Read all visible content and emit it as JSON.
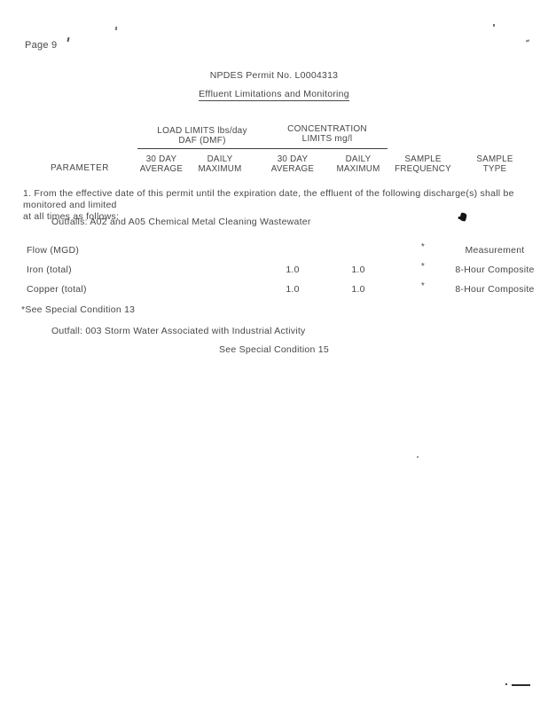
{
  "page": {
    "page_label": "Page 9",
    "permit_line": "NPDES Permit No. L0004313",
    "section_heading": "Effluent Limitations and Monitoring"
  },
  "paragraph": {
    "line1": "1. From the effective date of this permit until the expiration date, the effluent of the following discharge(s) shall be monitored and limited",
    "line2": "at all times as follows:",
    "outfalls_line": "Outfalls:  A02 and A05 Chemical Metal Cleaning Wastewater"
  },
  "table": {
    "parameter_header": "PARAMETER",
    "load_group": {
      "line1": "LOAD LIMITS lbs/day",
      "line2": "DAF (DMF)"
    },
    "concentration_group": {
      "line1": "CONCENTRATION",
      "line2": "LIMITS mg/l"
    },
    "columns": [
      {
        "line1": "30 DAY",
        "line2": "AVERAGE"
      },
      {
        "line1": "DAILY",
        "line2": "MAXIMUM"
      },
      {
        "line1": "30 DAY",
        "line2": "AVERAGE"
      },
      {
        "line1": "DAILY",
        "line2": "MAXIMUM"
      },
      {
        "line1": "SAMPLE",
        "line2": "FREQUENCY"
      },
      {
        "line1": "SAMPLE",
        "line2": "TYPE"
      }
    ],
    "rows": [
      {
        "parameter": "Flow (MGD)",
        "conc_avg": "",
        "conc_max": "",
        "frequency": "*",
        "sample_type": "Measurement"
      },
      {
        "parameter": "Iron (total)",
        "conc_avg": "1.0",
        "conc_max": "1.0",
        "frequency": "*",
        "sample_type": "8-Hour Composite"
      },
      {
        "parameter": "Copper (total)",
        "conc_avg": "1.0",
        "conc_max": "1.0",
        "frequency": "*",
        "sample_type": "8-Hour Composite"
      }
    ],
    "footnote": "*See Special Condition 13"
  },
  "storm": {
    "outfall_line": "Outfall:  003 Storm Water Associated with Industrial Activity",
    "see_special_line": "See Special Condition 15"
  }
}
